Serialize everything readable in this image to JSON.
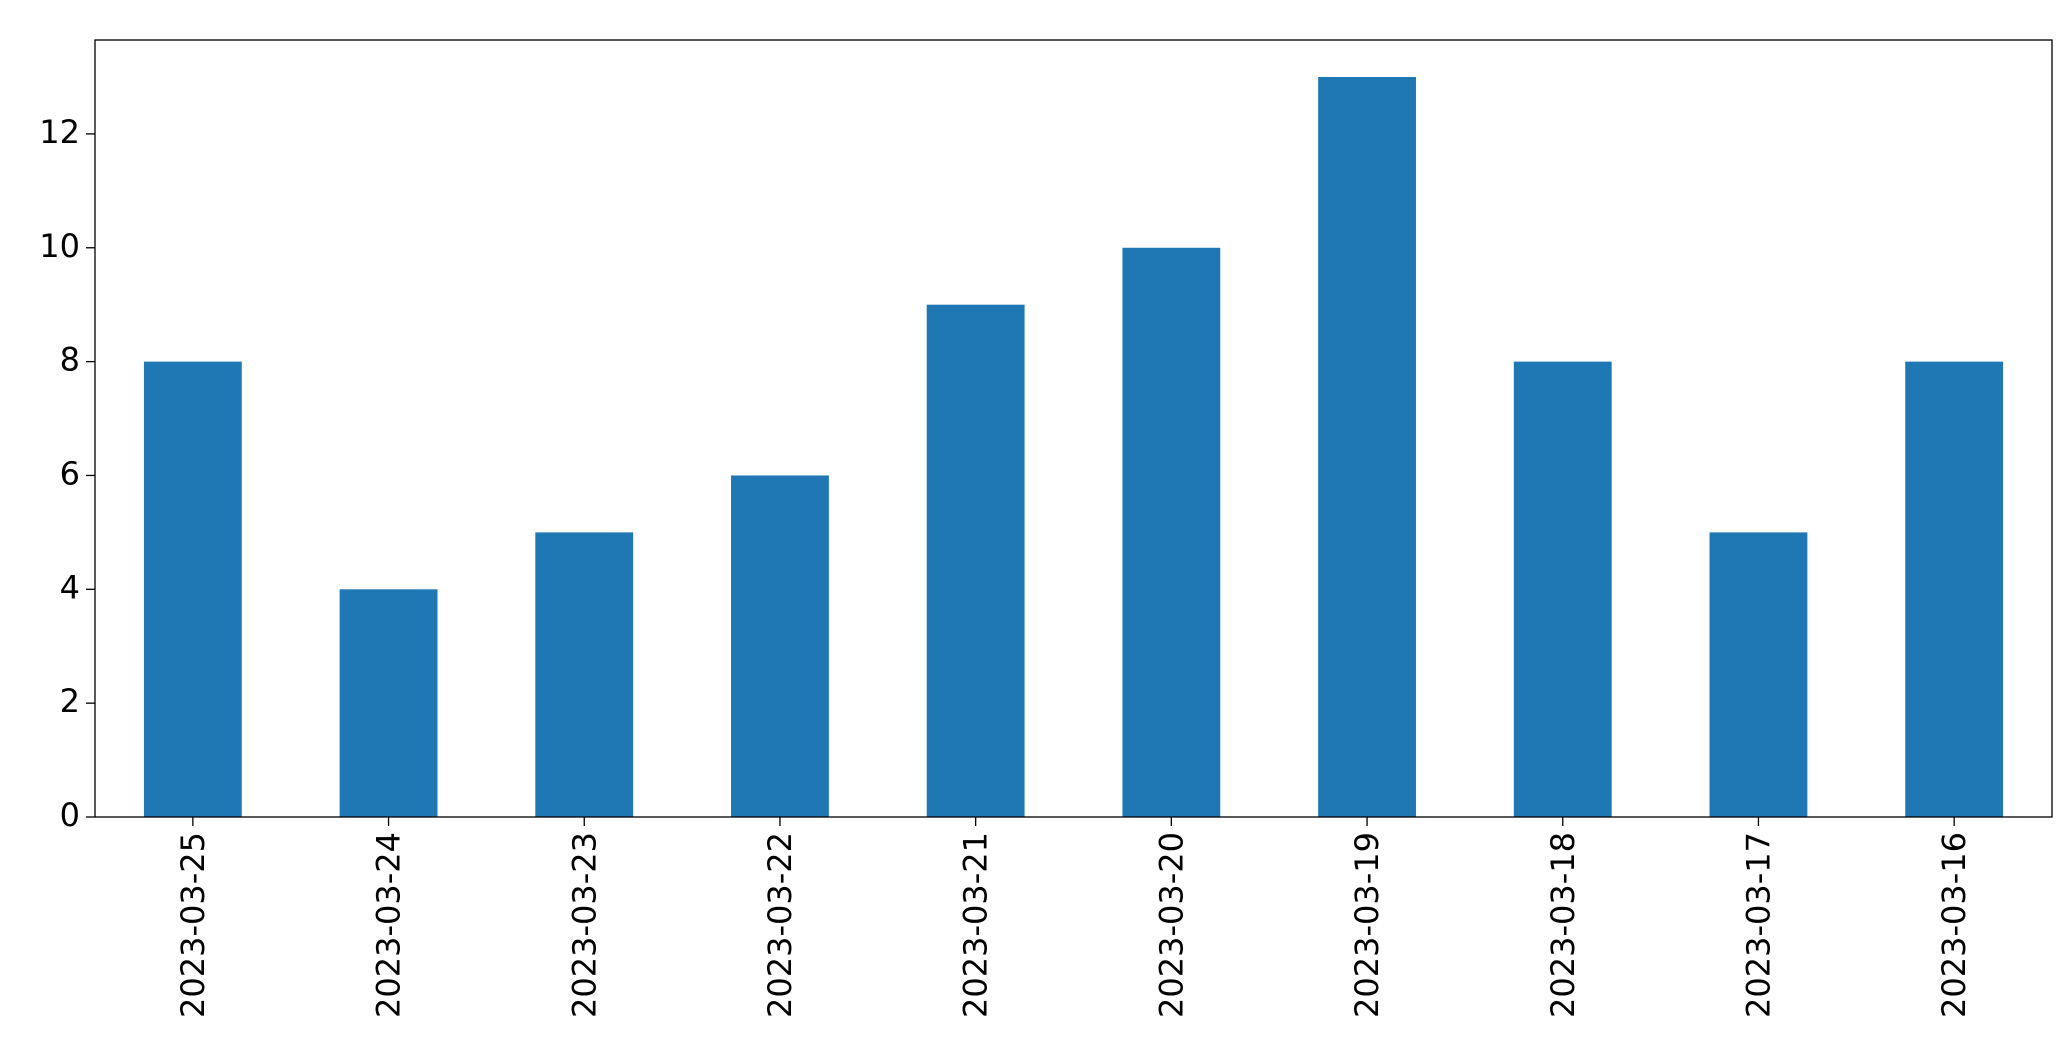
{
  "chart_data": {
    "type": "bar",
    "categories": [
      "2023-03-25",
      "2023-03-24",
      "2023-03-23",
      "2023-03-22",
      "2023-03-21",
      "2023-03-20",
      "2023-03-19",
      "2023-03-18",
      "2023-03-17",
      "2023-03-16"
    ],
    "values": [
      8,
      4,
      5,
      6,
      9,
      10,
      13,
      8,
      5,
      8
    ],
    "color": "#1f77b4",
    "ylim": [
      0,
      13.65
    ],
    "yticks": [
      0,
      2,
      4,
      6,
      8,
      10,
      12
    ],
    "grid": false
  }
}
